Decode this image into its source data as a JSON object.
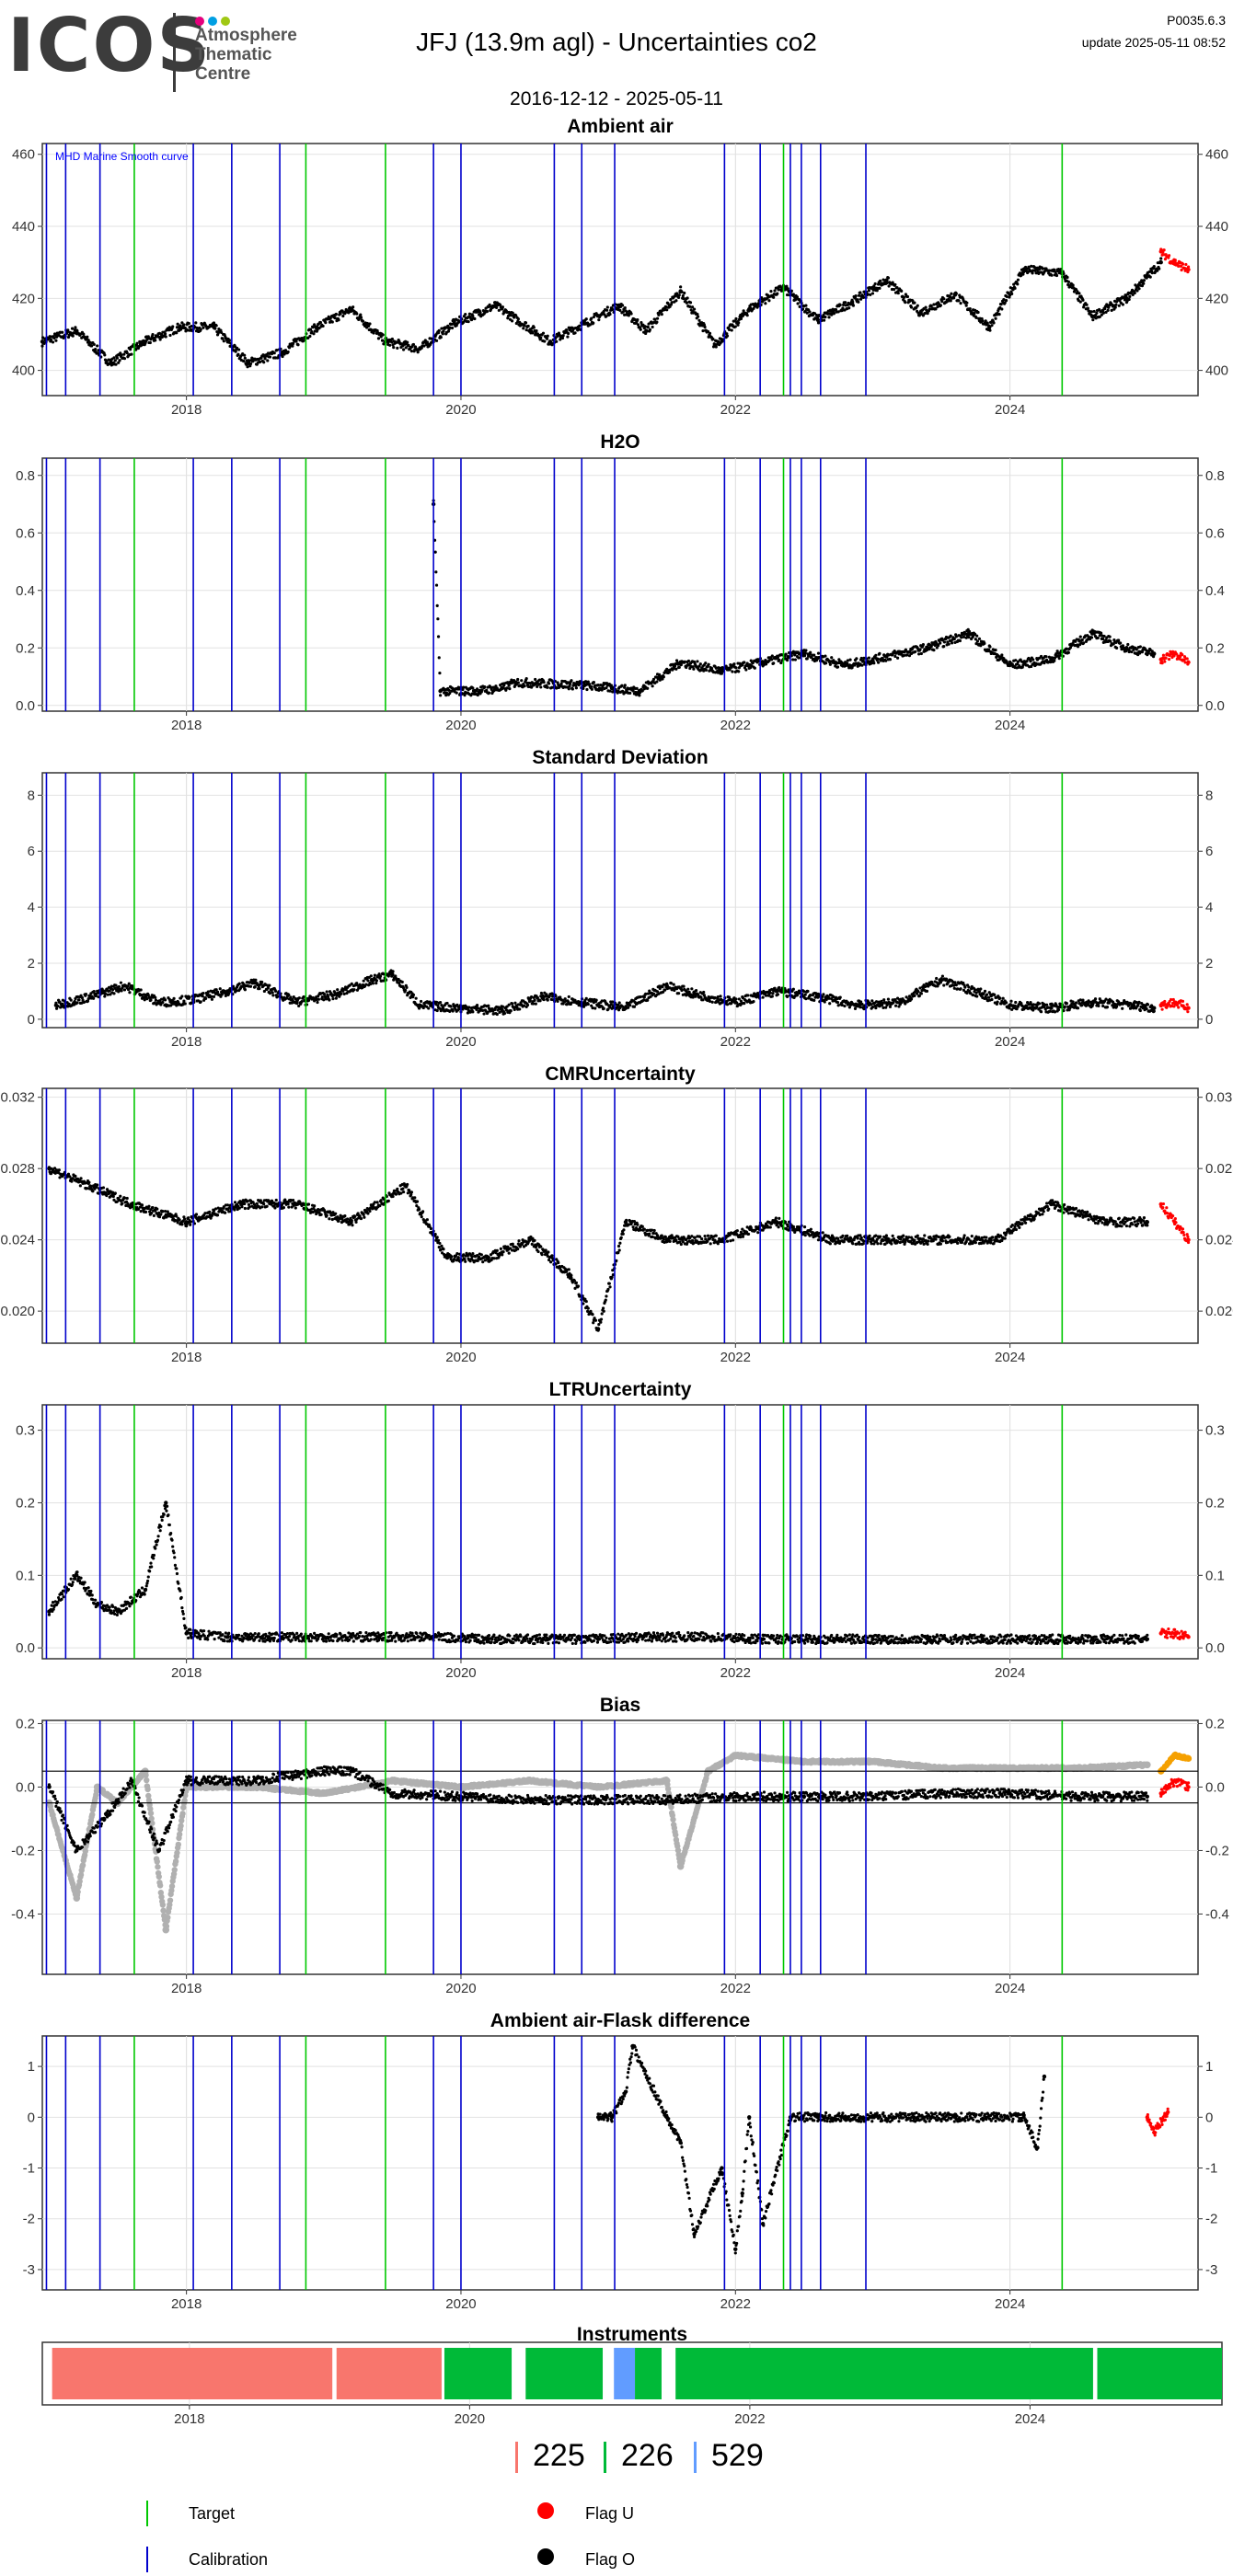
{
  "logo": {
    "mark": "ICOS",
    "subtitle": "Atmosphere\nThematic\nCentre",
    "dot_colors": [
      "#e5007d",
      "#009fe3",
      "#a0c814"
    ]
  },
  "header": {
    "title": "JFJ  (13.9m agl) - Uncertainties co2",
    "version": "P0035.6.3",
    "update": "update  2025-05-11 08:52",
    "date_range": "2016-12-12 - 2025-05-11"
  },
  "colors": {
    "target": "#00c800",
    "calibration": "#0000cc",
    "flag_u": "#ff0000",
    "flag_o": "#000000",
    "bias_grey": "#b0b0b0",
    "bias_orange": "#f5a000",
    "inst_225": "#f8766d",
    "inst_226": "#00ba38",
    "inst_529": "#619cff"
  },
  "chart_data": [
    {
      "type": "scatter",
      "title": "Ambient air",
      "annotation": "MHD Marine Smooth curve",
      "xlim": [
        2016.95,
        2025.37
      ],
      "ylim": [
        393,
        463
      ],
      "yticks": [
        400,
        420,
        440,
        460
      ],
      "yticklabels": [
        "400",
        "420",
        "440",
        "460"
      ],
      "xticks": [
        2018,
        2020,
        2022,
        2024
      ],
      "xticklabels": [
        "2018",
        "2020",
        "2022",
        "2024"
      ],
      "calibration_lines": [
        2016.98,
        2017.12,
        2017.37,
        2018.05,
        2018.33,
        2018.68,
        2019.8,
        2020.0,
        2020.68,
        2020.88,
        2021.12,
        2021.92,
        2022.18,
        2022.4,
        2022.48,
        2022.62,
        2022.95
      ],
      "target_lines": [
        2017.62,
        2018.87,
        2019.45,
        2022.35,
        2024.38
      ],
      "series": [
        {
          "flag": "O",
          "x": [
            2016.95,
            2017.2,
            2017.45,
            2017.7,
            2017.95,
            2018.2,
            2018.45,
            2018.7,
            2018.95,
            2019.2,
            2019.45,
            2019.7,
            2019.95,
            2020.25,
            2020.65,
            2020.9,
            2021.15,
            2021.35,
            2021.6,
            2021.85,
            2022.1,
            2022.35,
            2022.6,
            2022.85,
            2023.1,
            2023.35,
            2023.6,
            2023.85,
            2024.1,
            2024.38,
            2024.6,
            2024.85,
            2025.1
          ],
          "y": [
            408,
            411,
            402,
            408,
            412,
            412,
            402,
            405,
            412,
            417,
            408,
            406,
            413,
            418,
            408,
            413,
            418,
            411,
            422,
            407,
            417,
            423,
            414,
            419,
            425,
            416,
            421,
            412,
            428,
            427,
            415,
            420,
            430
          ]
        },
        {
          "flag": "U",
          "x": [
            2025.1,
            2025.2,
            2025.3
          ],
          "y": [
            433,
            430,
            428
          ]
        }
      ]
    },
    {
      "type": "scatter",
      "title": "H2O",
      "xlim": [
        2016.95,
        2025.37
      ],
      "ylim": [
        -0.02,
        0.86
      ],
      "yticks": [
        0,
        0.2,
        0.4,
        0.6,
        0.8
      ],
      "yticklabels": [
        "0.0",
        "0.2",
        "0.4",
        "0.6",
        "0.8"
      ],
      "xticks": [
        2018,
        2020,
        2022,
        2024
      ],
      "xticklabels": [
        "2018",
        "2020",
        "2022",
        "2024"
      ],
      "calibration_lines": [
        2016.98,
        2017.12,
        2017.37,
        2018.05,
        2018.33,
        2018.68,
        2019.8,
        2020.0,
        2020.68,
        2020.88,
        2021.12,
        2021.92,
        2022.18,
        2022.4,
        2022.48,
        2022.62,
        2022.95
      ],
      "target_lines": [
        2017.62,
        2018.87,
        2019.45,
        2022.35,
        2024.38
      ],
      "series": [
        {
          "flag": "O",
          "x": [
            2019.8,
            2019.85,
            2020.1,
            2020.3,
            2020.4,
            2020.9,
            2021.1,
            2021.3,
            2021.6,
            2021.9,
            2022.2,
            2022.5,
            2022.8,
            2023.1,
            2023.4,
            2023.7,
            2024.0,
            2024.3,
            2024.6,
            2024.85,
            2025.05
          ],
          "y": [
            0.7,
            0.05,
            0.05,
            0.06,
            0.08,
            0.07,
            0.06,
            0.05,
            0.15,
            0.12,
            0.15,
            0.18,
            0.14,
            0.17,
            0.2,
            0.25,
            0.14,
            0.16,
            0.25,
            0.2,
            0.18
          ]
        },
        {
          "flag": "U",
          "x": [
            2025.1,
            2025.2,
            2025.3
          ],
          "y": [
            0.16,
            0.18,
            0.15
          ]
        }
      ]
    },
    {
      "type": "scatter",
      "title": "Standard Deviation",
      "xlim": [
        2016.95,
        2025.37
      ],
      "ylim": [
        -0.3,
        8.8
      ],
      "yticks": [
        0,
        2,
        4,
        6,
        8
      ],
      "yticklabels": [
        "0",
        "2",
        "4",
        "6",
        "8"
      ],
      "xticks": [
        2018,
        2020,
        2022,
        2024
      ],
      "xticklabels": [
        "2018",
        "2020",
        "2022",
        "2024"
      ],
      "calibration_lines": [
        2016.98,
        2017.12,
        2017.37,
        2018.05,
        2018.33,
        2018.68,
        2019.8,
        2020.0,
        2020.68,
        2020.88,
        2021.12,
        2021.92,
        2022.18,
        2022.4,
        2022.48,
        2022.62,
        2022.95
      ],
      "target_lines": [
        2017.62,
        2018.87,
        2019.45,
        2022.35,
        2024.38
      ],
      "series": [
        {
          "flag": "O",
          "x": [
            2017.05,
            2017.3,
            2017.55,
            2017.8,
            2018.05,
            2018.3,
            2018.5,
            2018.8,
            2019.1,
            2019.35,
            2019.5,
            2019.7,
            2020.0,
            2020.3,
            2020.6,
            2020.9,
            2021.2,
            2021.5,
            2021.7,
            2022.0,
            2022.3,
            2022.6,
            2022.9,
            2023.2,
            2023.5,
            2023.8,
            2024.0,
            2024.3,
            2024.6,
            2024.9,
            2025.05
          ],
          "y": [
            0.5,
            0.8,
            1.2,
            0.6,
            0.7,
            1.0,
            1.3,
            0.6,
            0.9,
            1.4,
            1.6,
            0.5,
            0.4,
            0.3,
            0.8,
            0.6,
            0.4,
            1.2,
            0.9,
            0.6,
            1.0,
            0.8,
            0.5,
            0.6,
            1.4,
            0.9,
            0.5,
            0.4,
            0.6,
            0.5,
            0.4
          ]
        },
        {
          "flag": "U",
          "x": [
            2025.1,
            2025.2,
            2025.3
          ],
          "y": [
            0.5,
            0.6,
            0.4
          ]
        }
      ]
    },
    {
      "type": "scatter",
      "title": "CMRUncertainty",
      "xlim": [
        2016.95,
        2025.37
      ],
      "ylim": [
        0.0182,
        0.0325
      ],
      "yticks": [
        0.02,
        0.024,
        0.028,
        0.032
      ],
      "yticklabels": [
        "0.020",
        "0.024",
        "0.028",
        "0.032"
      ],
      "xticks": [
        2018,
        2020,
        2022,
        2024
      ],
      "xticklabels": [
        "2018",
        "2020",
        "2022",
        "2024"
      ],
      "calibration_lines": [
        2016.98,
        2017.12,
        2017.37,
        2018.05,
        2018.33,
        2018.68,
        2019.8,
        2020.0,
        2020.68,
        2020.88,
        2021.12,
        2021.92,
        2022.18,
        2022.4,
        2022.48,
        2022.62,
        2022.95
      ],
      "target_lines": [
        2017.62,
        2018.87,
        2019.45,
        2022.35,
        2024.38
      ],
      "series": [
        {
          "flag": "O",
          "x": [
            2017.0,
            2017.3,
            2017.6,
            2018.0,
            2018.4,
            2018.8,
            2019.2,
            2019.6,
            2019.9,
            2020.2,
            2020.5,
            2020.8,
            2021.0,
            2021.2,
            2021.5,
            2021.9,
            2022.3,
            2022.7,
            2023.1,
            2023.5,
            2023.9,
            2024.3,
            2024.7,
            2025.0
          ],
          "y": [
            0.028,
            0.027,
            0.026,
            0.025,
            0.026,
            0.026,
            0.025,
            0.027,
            0.023,
            0.023,
            0.024,
            0.022,
            0.019,
            0.025,
            0.024,
            0.024,
            0.025,
            0.024,
            0.024,
            0.024,
            0.024,
            0.026,
            0.025,
            0.025
          ]
        },
        {
          "flag": "U",
          "x": [
            2025.1,
            2025.2,
            2025.3
          ],
          "y": [
            0.026,
            0.025,
            0.024
          ]
        }
      ]
    },
    {
      "type": "scatter",
      "title": "LTRUncertainty",
      "xlim": [
        2016.95,
        2025.37
      ],
      "ylim": [
        -0.015,
        0.335
      ],
      "yticks": [
        0,
        0.1,
        0.2,
        0.3
      ],
      "yticklabels": [
        "0.0",
        "0.1",
        "0.2",
        "0.3"
      ],
      "xticks": [
        2018,
        2020,
        2022,
        2024
      ],
      "xticklabels": [
        "2018",
        "2020",
        "2022",
        "2024"
      ],
      "calibration_lines": [
        2016.98,
        2017.12,
        2017.37,
        2018.05,
        2018.33,
        2018.68,
        2019.8,
        2020.0,
        2020.68,
        2020.88,
        2021.12,
        2021.92,
        2022.18,
        2022.4,
        2022.48,
        2022.62,
        2022.95
      ],
      "target_lines": [
        2017.62,
        2018.87,
        2019.45,
        2022.35,
        2024.38
      ],
      "series": [
        {
          "flag": "O",
          "x": [
            2017.0,
            2017.2,
            2017.35,
            2017.5,
            2017.7,
            2017.85,
            2018.0,
            2018.3,
            2018.6,
            2019.0,
            2019.4,
            2019.8,
            2020.2,
            2020.6,
            2021.0,
            2021.4,
            2021.8,
            2022.2,
            2022.6,
            2023.0,
            2023.4,
            2023.8,
            2024.2,
            2024.6,
            2025.0
          ],
          "y": [
            0.05,
            0.1,
            0.06,
            0.05,
            0.08,
            0.2,
            0.02,
            0.015,
            0.015,
            0.015,
            0.015,
            0.015,
            0.012,
            0.012,
            0.012,
            0.015,
            0.015,
            0.012,
            0.012,
            0.012,
            0.012,
            0.012,
            0.012,
            0.012,
            0.012
          ]
        },
        {
          "flag": "U",
          "x": [
            2025.1,
            2025.2,
            2025.3
          ],
          "y": [
            0.02,
            0.02,
            0.015
          ]
        }
      ]
    },
    {
      "type": "line",
      "title": "Bias",
      "xlim": [
        2016.95,
        2025.37
      ],
      "ylim": [
        -0.59,
        0.21
      ],
      "yticks": [
        -0.4,
        -0.2,
        0,
        0.2
      ],
      "yticklabels": [
        "-0.4",
        "-0.2",
        "0.0",
        "0.2"
      ],
      "xticks": [
        2018,
        2020,
        2022,
        2024
      ],
      "xticklabels": [
        "2018",
        "2020",
        "2022",
        "2024"
      ],
      "hlines": [
        0.05,
        -0.05
      ],
      "calibration_lines": [
        2016.98,
        2017.12,
        2017.37,
        2018.05,
        2018.33,
        2018.68,
        2019.8,
        2020.0,
        2020.68,
        2020.88,
        2021.12,
        2021.92,
        2022.18,
        2022.4,
        2022.48,
        2022.62,
        2022.95
      ],
      "target_lines": [
        2017.62,
        2018.87,
        2019.45,
        2022.35,
        2024.38
      ],
      "series": [
        {
          "flag": "grey",
          "x": [
            2017.0,
            2017.2,
            2017.35,
            2017.5,
            2017.7,
            2017.85,
            2018.0,
            2018.5,
            2019.0,
            2019.5,
            2020.0,
            2020.5,
            2021.0,
            2021.5,
            2021.6,
            2021.8,
            2022.0,
            2022.5,
            2023.0,
            2023.5,
            2024.0,
            2024.5,
            2025.0
          ],
          "y": [
            -0.05,
            -0.35,
            0.0,
            -0.05,
            0.05,
            -0.45,
            0.0,
            0.0,
            -0.02,
            0.02,
            0.0,
            0.02,
            0.0,
            0.02,
            -0.25,
            0.05,
            0.1,
            0.08,
            0.08,
            0.06,
            0.06,
            0.06,
            0.07
          ]
        },
        {
          "flag": "O",
          "x": [
            2017.0,
            2017.2,
            2017.4,
            2017.6,
            2017.8,
            2018.0,
            2018.5,
            2019.0,
            2019.2,
            2019.5,
            2020.0,
            2020.5,
            2021.0,
            2021.5,
            2022.0,
            2022.5,
            2023.0,
            2023.5,
            2024.0,
            2024.5,
            2025.0
          ],
          "y": [
            0.0,
            -0.2,
            -0.1,
            0.02,
            -0.2,
            0.02,
            0.02,
            0.05,
            0.05,
            -0.02,
            -0.03,
            -0.04,
            -0.04,
            -0.04,
            -0.03,
            -0.03,
            -0.03,
            -0.02,
            -0.02,
            -0.03,
            -0.03
          ]
        },
        {
          "flag": "U",
          "x": [
            2025.1,
            2025.2,
            2025.3
          ],
          "y": [
            -0.02,
            0.02,
            0.0
          ]
        },
        {
          "flag": "orange",
          "x": [
            2025.1,
            2025.2,
            2025.3
          ],
          "y": [
            0.05,
            0.1,
            0.09
          ]
        }
      ]
    },
    {
      "type": "scatter",
      "title": "Ambient air-Flask difference",
      "xlim": [
        2016.95,
        2025.37
      ],
      "ylim": [
        -3.4,
        1.6
      ],
      "yticks": [
        -3,
        -2,
        -1,
        0,
        1
      ],
      "yticklabels": [
        "-3",
        "-2",
        "-1",
        "0",
        "1"
      ],
      "xticks": [
        2018,
        2020,
        2022,
        2024
      ],
      "xticklabels": [
        "2018",
        "2020",
        "2022",
        "2024"
      ],
      "calibration_lines": [
        2016.98,
        2017.12,
        2017.37,
        2018.05,
        2018.33,
        2018.68,
        2019.8,
        2020.0,
        2020.68,
        2020.88,
        2021.12,
        2021.92,
        2022.18,
        2022.4,
        2022.48,
        2022.62,
        2022.95
      ],
      "target_lines": [
        2017.62,
        2018.87,
        2019.45,
        2022.35,
        2024.38
      ],
      "series": [
        {
          "flag": "O",
          "x": [
            2021.0,
            2021.1,
            2021.2,
            2021.25,
            2021.5,
            2021.6,
            2021.7,
            2021.9,
            2022.0,
            2022.05,
            2022.1,
            2022.2,
            2022.4,
            2022.6,
            2022.8,
            2023.0,
            2023.3,
            2023.6,
            2023.9,
            2024.1,
            2024.2,
            2024.25
          ],
          "y": [
            0.0,
            0.0,
            0.5,
            1.4,
            0.0,
            -0.5,
            -2.3,
            -1.0,
            -2.6,
            -1.5,
            0.0,
            -2.1,
            0.0,
            0.0,
            0.0,
            0.0,
            0.0,
            0.0,
            0.0,
            0.0,
            -0.6,
            0.8
          ]
        },
        {
          "flag": "U",
          "x": [
            2025.0,
            2025.05,
            2025.15
          ],
          "y": [
            0.0,
            -0.3,
            0.1
          ]
        }
      ]
    },
    {
      "type": "bar",
      "title": "Instruments",
      "xlim": [
        2016.95,
        2025.37
      ],
      "xticks": [
        2018,
        2020,
        2022,
        2024
      ],
      "xticklabels": [
        "2018",
        "2020",
        "2022",
        "2024"
      ],
      "segments": [
        {
          "instrument": "225",
          "start": 2017.02,
          "end": 2019.02
        },
        {
          "instrument": "225",
          "start": 2019.05,
          "end": 2019.8
        },
        {
          "instrument": "226",
          "start": 2019.82,
          "end": 2020.3
        },
        {
          "instrument": "226",
          "start": 2020.4,
          "end": 2020.95
        },
        {
          "instrument": "529",
          "start": 2021.03,
          "end": 2021.18
        },
        {
          "instrument": "226",
          "start": 2021.18,
          "end": 2021.37
        },
        {
          "instrument": "226",
          "start": 2021.47,
          "end": 2024.45
        },
        {
          "instrument": "226",
          "start": 2024.48,
          "end": 2025.37
        }
      ]
    }
  ],
  "legend": {
    "instruments": [
      {
        "id": "225",
        "label": "225"
      },
      {
        "id": "226",
        "label": "226"
      },
      {
        "id": "529",
        "label": "529"
      }
    ],
    "target_label": "Target",
    "calibration_label": "Calibration",
    "flag_u_label": "Flag U",
    "flag_o_label": "Flag O"
  }
}
